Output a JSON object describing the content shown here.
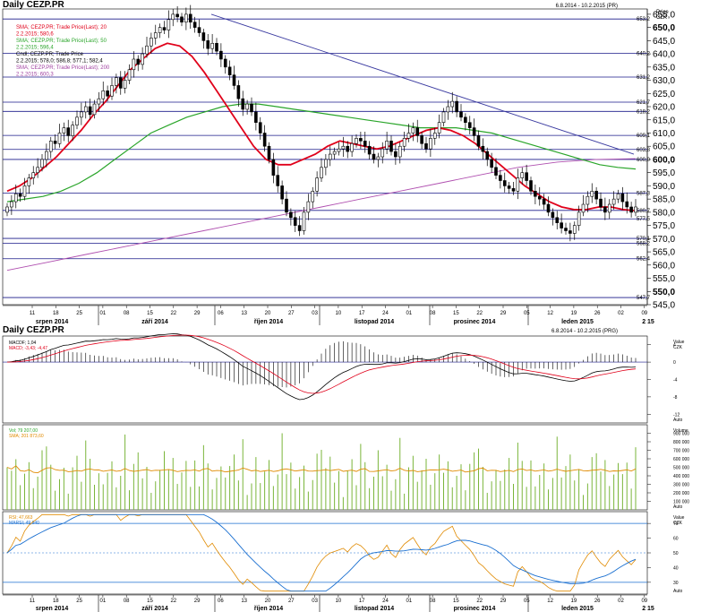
{
  "header": {
    "title": "Daily CEZP.PR",
    "range": "6.8.2014 - 10.2.2015 (PR)",
    "axis_unit_1": "Price",
    "axis_unit_2": "CZK"
  },
  "lower_header": {
    "title": "Daily CEZP.PR",
    "range": "6.8.2014 - 10.2.2015 (PRG)"
  },
  "legend": [
    {
      "text": "SMA; CEZP.PR; Trade Price(Last); 20",
      "color": "#e0001a"
    },
    {
      "text": "2.2.2015; 580,6",
      "color": "#e0001a"
    },
    {
      "text": "SMA; CEZP.PR; Trade Price(Last); 50",
      "color": "#2aa52a"
    },
    {
      "text": "2.2.2015; 596,4",
      "color": "#2aa52a"
    },
    {
      "text": "Cndl; CEZP.PR; Trade Price",
      "color": "#000000"
    },
    {
      "text": "2.2.2015; 578,0; 586,8; 577,1; 582,4",
      "color": "#000000"
    },
    {
      "text": "SMA; CEZP.PR; Trade Price(Last); 200",
      "color": "#a040a0"
    },
    {
      "text": "2.2.2015; 600,3",
      "color": "#a040a0"
    }
  ],
  "price_axis": {
    "ticks": [
      "655,0",
      "650,0",
      "645,0",
      "640,0",
      "635,0",
      "630,0",
      "625,0",
      "620,0",
      "615,0",
      "610,0",
      "605,0",
      "600,0",
      "595,0",
      "590,0",
      "585,0",
      "580,0",
      "575,0",
      "570,0",
      "565,0",
      "560,0",
      "555,0",
      "550,0",
      "545,0"
    ],
    "bold_ticks": [
      "650,0",
      "600,0",
      "550,0"
    ],
    "level_labels": [
      "653,2",
      "640,2",
      "631,2",
      "621,7",
      "618,2",
      "609,1",
      "603,8",
      "600,0",
      "587,3",
      "580,7",
      "577,5",
      "570,1",
      "568,2",
      "562,4",
      "547,7"
    ]
  },
  "x_axis": {
    "days": [
      "11",
      "18",
      "25",
      "01",
      "08",
      "15",
      "22",
      "29",
      "06",
      "13",
      "20",
      "27",
      "03",
      "10",
      "17",
      "24",
      "01",
      "08",
      "15",
      "22",
      "29",
      "05",
      "12",
      "19",
      "26",
      "02",
      "09"
    ],
    "months": [
      "srpen 2014",
      "září 2014",
      "říjen 2014",
      "listopad 2014",
      "prosinec 2014",
      "leden 2015"
    ],
    "right_label": "2 15"
  },
  "macd_panel": {
    "legend": [
      "MACDF; 1,04",
      "MACD; -3,43; -4,47"
    ],
    "legend_colors": [
      "#000000",
      "#e0001a"
    ],
    "axis_title": [
      "Value",
      "CZK"
    ],
    "ticks": [
      "4",
      "0",
      "-4",
      "-8",
      "-12"
    ],
    "badge": "Auto"
  },
  "volume_panel": {
    "legend": [
      "Vol; 79 207,00",
      "SMA; 201 873,60"
    ],
    "legend_colors": [
      "#2aa52a",
      "#e08a00"
    ],
    "axis_title": [
      "Volume"
    ],
    "ticks": [
      "900 000",
      "800 000",
      "700 000",
      "600 000",
      "500 000",
      "400 000",
      "300 000",
      "200 000",
      "100 000"
    ],
    "badge": "Auto"
  },
  "rsi_panel": {
    "legend": [
      "RSI; 47,663",
      "MARSI; 49,940"
    ],
    "legend_colors": [
      "#e08a00",
      "#1a6fd0"
    ],
    "axis_title": [
      "Value",
      "CZK"
    ],
    "ticks": [
      "70",
      "60",
      "50",
      "40",
      "30"
    ],
    "badge": "Auto"
  },
  "colors": {
    "sma20": "#e0001a",
    "sma50": "#2aa52a",
    "sma200": "#b050b0",
    "level_line": "#1a1a8a",
    "trend_line": "#3a3aa0",
    "candle": "#000000"
  },
  "chart_data": [
    {
      "type": "candlestick",
      "title": "Daily CEZP.PR",
      "x_range": [
        "6.8.2014",
        "10.2.2015"
      ],
      "ylim": [
        545,
        657
      ],
      "closes": [
        582,
        584,
        587,
        586,
        590,
        593,
        595,
        597,
        600,
        603,
        607,
        606,
        610,
        612,
        609,
        613,
        616,
        618,
        620,
        617,
        621,
        623,
        626,
        624,
        628,
        631,
        627,
        630,
        634,
        638,
        636,
        640,
        643,
        646,
        648,
        650,
        649,
        653,
        655,
        654,
        652,
        655,
        652,
        650,
        648,
        645,
        642,
        644,
        641,
        638,
        635,
        632,
        628,
        623,
        619,
        621,
        618,
        614,
        610,
        605,
        600,
        594,
        590,
        585,
        580,
        578,
        575,
        573,
        580,
        584,
        588,
        593,
        597,
        600,
        602,
        603,
        604,
        605,
        603,
        606,
        608,
        607,
        605,
        602,
        600,
        601,
        604,
        607,
        603,
        601,
        605,
        608,
        610,
        612,
        609,
        606,
        604,
        608,
        610,
        614,
        618,
        620,
        622,
        618,
        616,
        614,
        612,
        609,
        605,
        603,
        600,
        597,
        594,
        592,
        590,
        589,
        588,
        593,
        595,
        592,
        588,
        586,
        585,
        583,
        580,
        578,
        576,
        574,
        573,
        572,
        575,
        580,
        583,
        586,
        588,
        585,
        582,
        580,
        583,
        585,
        587,
        584,
        582,
        580,
        582
      ],
      "closes_note": "approximate daily closes read from the candlestick body positions, one per trading day",
      "sma20_approx": [
        588,
        590,
        593,
        597,
        601,
        606,
        611,
        617,
        622,
        628,
        634,
        638,
        642,
        644,
        643,
        639,
        633,
        626,
        619,
        612,
        605,
        600,
        598,
        598,
        600,
        602,
        605,
        607,
        606,
        605,
        604,
        605,
        607,
        609,
        611,
        612,
        611,
        609,
        606,
        602,
        598,
        594,
        590,
        587,
        584,
        582,
        581,
        581,
        582,
        582,
        581,
        580.6
      ],
      "sma50_approx": [
        584,
        585,
        586,
        588,
        591,
        595,
        600,
        605,
        610,
        613,
        616,
        618,
        620,
        621,
        621,
        620,
        619,
        618,
        617,
        616,
        615,
        614,
        613,
        612,
        612,
        612,
        611,
        610,
        608,
        606,
        604,
        602,
        600,
        598,
        597,
        596.4
      ],
      "sma200_approx": [
        558,
        561,
        564,
        567,
        570,
        573,
        576,
        579,
        582,
        585,
        588,
        591,
        594,
        597,
        599,
        600,
        600.3
      ],
      "level_lines": [
        653.2,
        640.2,
        631.2,
        621.7,
        618.2,
        609.1,
        603.8,
        600.0,
        587.3,
        580.7,
        577.5,
        570.1,
        568.2,
        562.4,
        547.7
      ],
      "last_candle": {
        "date": "2.2.2015",
        "open": 578.0,
        "high": 586.8,
        "low": 577.1,
        "close": 582.4
      }
    },
    {
      "type": "line",
      "title": "MACD",
      "series": [
        {
          "name": "MACDF",
          "last": 1.04
        },
        {
          "name": "MACD",
          "last": [
            -3.43,
            -4.47
          ]
        }
      ],
      "ylim": [
        -14,
        6
      ]
    },
    {
      "type": "bar",
      "title": "Volume",
      "series": [
        {
          "name": "Vol",
          "last": 79207.0
        },
        {
          "name": "SMA",
          "last": 201873.6
        }
      ],
      "ylim": [
        0,
        1000000
      ]
    },
    {
      "type": "line",
      "title": "RSI",
      "series": [
        {
          "name": "RSI",
          "last": 47.663
        },
        {
          "name": "MARSI",
          "last": 49.94
        }
      ],
      "ylim": [
        22,
        78
      ]
    }
  ]
}
